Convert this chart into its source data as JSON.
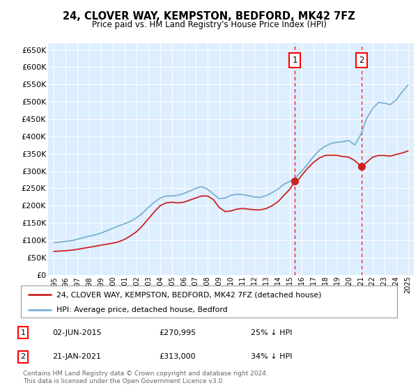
{
  "title": "24, CLOVER WAY, KEMPSTON, BEDFORD, MK42 7FZ",
  "subtitle": "Price paid vs. HM Land Registry's House Price Index (HPI)",
  "legend_line1": "24, CLOVER WAY, KEMPSTON, BEDFORD, MK42 7FZ (detached house)",
  "legend_line2": "HPI: Average price, detached house, Bedford",
  "sale1_date": "02-JUN-2015",
  "sale1_price": "£270,995",
  "sale1_hpi": "25% ↓ HPI",
  "sale1_year": 2015.42,
  "sale1_price_val": 270995,
  "sale2_date": "21-JAN-2021",
  "sale2_price": "£313,000",
  "sale2_hpi": "34% ↓ HPI",
  "sale2_year": 2021.05,
  "sale2_price_val": 313000,
  "footer": "Contains HM Land Registry data © Crown copyright and database right 2024.\nThis data is licensed under the Open Government Licence v3.0.",
  "hpi_color": "#7ab0d4",
  "price_color": "#cc2222",
  "plot_bg_color": "#ddeeff",
  "grid_color": "#ffffff",
  "ylim": [
    0,
    670000
  ],
  "xlim": [
    1994.5,
    2025.5
  ],
  "hpi_data": {
    "years": [
      1995,
      1995.5,
      1996,
      1996.5,
      1997,
      1997.5,
      1998,
      1998.5,
      1999,
      1999.5,
      2000,
      2000.5,
      2001,
      2001.5,
      2002,
      2002.5,
      2003,
      2003.5,
      2004,
      2004.5,
      2005,
      2005.5,
      2006,
      2006.5,
      2007,
      2007.5,
      2008,
      2008.5,
      2009,
      2009.5,
      2010,
      2010.5,
      2011,
      2011.5,
      2012,
      2012.5,
      2013,
      2013.5,
      2014,
      2014.5,
      2015,
      2015.5,
      2016,
      2016.5,
      2017,
      2017.5,
      2018,
      2018.5,
      2019,
      2019.5,
      2020,
      2020.5,
      2021,
      2021.5,
      2022,
      2022.5,
      2023,
      2023.5,
      2024,
      2024.5,
      2025
    ],
    "values": [
      93000,
      95000,
      97000,
      99000,
      103000,
      108000,
      112000,
      116000,
      121000,
      128000,
      135000,
      142000,
      148000,
      155000,
      165000,
      178000,
      195000,
      210000,
      222000,
      228000,
      228000,
      230000,
      235000,
      242000,
      250000,
      255000,
      248000,
      234000,
      220000,
      222000,
      230000,
      233000,
      232000,
      229000,
      225000,
      224000,
      229000,
      238000,
      248000,
      262000,
      270000,
      282000,
      300000,
      320000,
      342000,
      360000,
      372000,
      380000,
      383000,
      385000,
      388000,
      375000,
      405000,
      452000,
      480000,
      498000,
      496000,
      492000,
      505000,
      528000,
      548000
    ]
  },
  "price_data": {
    "years": [
      1995.0,
      1995.5,
      1996.0,
      1996.5,
      1997.0,
      1997.5,
      1998.0,
      1998.5,
      1999.0,
      1999.5,
      2000.0,
      2000.5,
      2001.0,
      2001.5,
      2002.0,
      2002.5,
      2003.0,
      2003.5,
      2004.0,
      2004.5,
      2005.0,
      2005.5,
      2006.0,
      2006.5,
      2007.0,
      2007.5,
      2008.0,
      2008.5,
      2009.0,
      2009.5,
      2010.0,
      2010.5,
      2011.0,
      2011.5,
      2012.0,
      2012.5,
      2013.0,
      2013.5,
      2014.0,
      2014.5,
      2015.0,
      2015.42,
      2015.8,
      2016.0,
      2016.5,
      2017.0,
      2017.5,
      2018.0,
      2018.5,
      2019.0,
      2019.5,
      2020.0,
      2020.5,
      2021.05,
      2021.5,
      2022.0,
      2022.5,
      2023.0,
      2023.5,
      2024.0,
      2024.5,
      2025.0
    ],
    "values": [
      68000,
      69000,
      70000,
      71500,
      74000,
      77000,
      80000,
      83000,
      86000,
      89000,
      92000,
      96000,
      103000,
      113000,
      125000,
      142000,
      162000,
      182000,
      200000,
      208000,
      210000,
      208000,
      210000,
      216000,
      222000,
      228000,
      228000,
      218000,
      195000,
      183000,
      185000,
      190000,
      192000,
      190000,
      188000,
      188000,
      192000,
      200000,
      212000,
      230000,
      248000,
      270995,
      278000,
      288000,
      308000,
      325000,
      338000,
      345000,
      346000,
      345000,
      342000,
      340000,
      330000,
      313000,
      325000,
      340000,
      345000,
      345000,
      343000,
      348000,
      352000,
      358000
    ]
  }
}
